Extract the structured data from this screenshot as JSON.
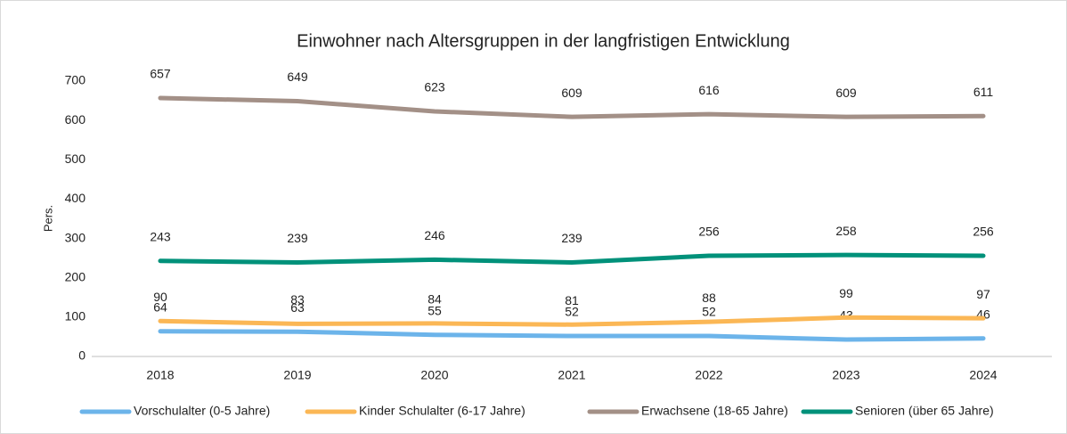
{
  "chart_data": {
    "type": "line",
    "title": "Einwohner nach Altersgruppen in der langfristigen Entwicklung",
    "y_label": "Pers.",
    "categories": [
      "2018",
      "2019",
      "2020",
      "2021",
      "2022",
      "2023",
      "2024"
    ],
    "series": [
      {
        "name": "Vorschulalter (0-5 Jahre)",
        "color": "#6cb4ea",
        "values": [
          64,
          63,
          55,
          52,
          52,
          43,
          46
        ]
      },
      {
        "name": "Kinder Schulalter (6-17 Jahre)",
        "color": "#fbb755",
        "values": [
          90,
          83,
          84,
          81,
          88,
          99,
          97
        ]
      },
      {
        "name": "Erwachsene (18-65 Jahre)",
        "color": "#a39087",
        "values": [
          657,
          649,
          623,
          609,
          616,
          609,
          611
        ]
      },
      {
        "name": "Senioren (über 65 Jahre)",
        "color": "#00917a",
        "values": [
          243,
          239,
          246,
          239,
          256,
          258,
          256
        ]
      }
    ],
    "ylim": [
      0,
      700
    ],
    "yticks": [
      0,
      100,
      200,
      300,
      400,
      500,
      600,
      700
    ],
    "legend": "bottom"
  }
}
